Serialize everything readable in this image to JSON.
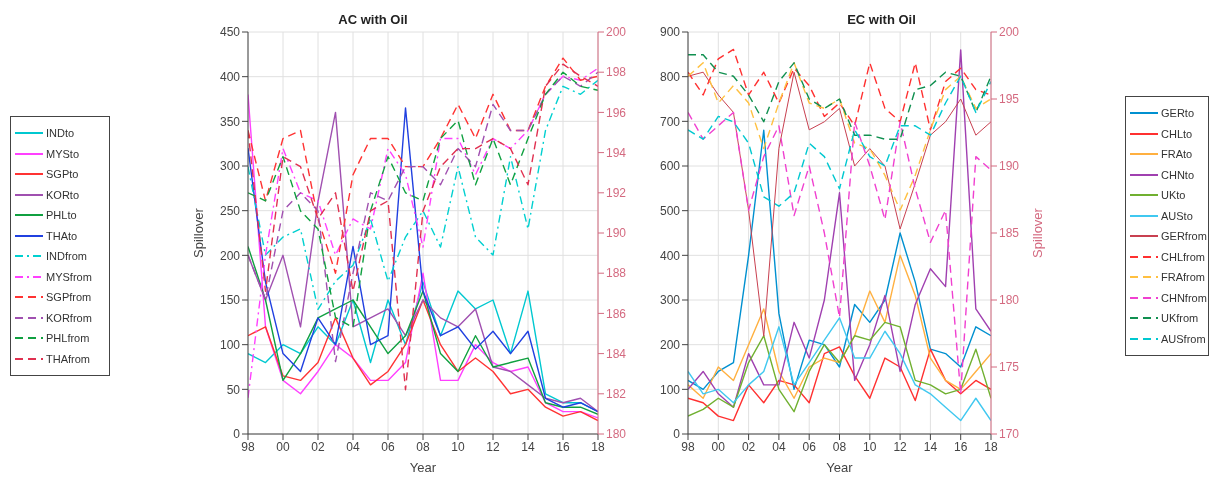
{
  "chart_data": [
    {
      "type": "line",
      "title": "AC with Oil",
      "xlabel": "Year",
      "ylabel": "Spillover",
      "legend": "left",
      "grid": true,
      "x": [
        1998,
        1999,
        2000,
        2001,
        2002,
        2003,
        2004,
        2005,
        2006,
        2007,
        2008,
        2009,
        2010,
        2011,
        2012,
        2013,
        2014,
        2015,
        2016,
        2017,
        2018
      ],
      "xlim": [
        1998,
        2018
      ],
      "xticks": [
        {
          "value": 1998,
          "label": "98"
        },
        {
          "value": 2000,
          "label": "00"
        },
        {
          "value": 2002,
          "label": "02"
        },
        {
          "value": 2004,
          "label": "04"
        },
        {
          "value": 2006,
          "label": "06"
        },
        {
          "value": 2008,
          "label": "08"
        },
        {
          "value": 2010,
          "label": "10"
        },
        {
          "value": 2012,
          "label": "12"
        },
        {
          "value": 2014,
          "label": "14"
        },
        {
          "value": 2016,
          "label": "16"
        },
        {
          "value": 2018,
          "label": "18"
        }
      ],
      "ylim": [
        0,
        450
      ],
      "yticks": [
        0,
        50,
        100,
        150,
        200,
        250,
        300,
        350,
        400,
        450
      ],
      "y2lim": [
        180,
        200
      ],
      "y2ticks": [
        180,
        182,
        184,
        186,
        188,
        190,
        192,
        194,
        196,
        198,
        200
      ],
      "series": [
        {
          "name": "INDto",
          "color": "#00c8d0",
          "line_style": "solid",
          "values": [
            90,
            80,
            100,
            90,
            120,
            100,
            150,
            80,
            150,
            100,
            170,
            110,
            160,
            140,
            150,
            90,
            160,
            45,
            35,
            35,
            25
          ]
        },
        {
          "name": "MYSto",
          "color": "#ff40ff",
          "line_style": "solid",
          "values": [
            380,
            120,
            60,
            45,
            70,
            100,
            85,
            60,
            60,
            80,
            180,
            60,
            60,
            100,
            80,
            70,
            75,
            35,
            25,
            25,
            18
          ]
        },
        {
          "name": "SGPto",
          "color": "#ff3333",
          "line_style": "solid",
          "values": [
            110,
            120,
            65,
            60,
            80,
            130,
            85,
            55,
            70,
            100,
            150,
            100,
            70,
            85,
            70,
            45,
            50,
            30,
            20,
            25,
            15
          ]
        },
        {
          "name": "KORto",
          "color": "#a050b0",
          "line_style": "solid",
          "values": [
            200,
            150,
            200,
            120,
            260,
            360,
            120,
            130,
            140,
            110,
            150,
            130,
            120,
            140,
            75,
            70,
            55,
            40,
            35,
            40,
            25
          ]
        },
        {
          "name": "PHLto",
          "color": "#10a040",
          "line_style": "solid",
          "values": [
            210,
            150,
            60,
            90,
            130,
            140,
            150,
            120,
            90,
            110,
            160,
            90,
            70,
            110,
            75,
            80,
            85,
            35,
            30,
            30,
            22
          ]
        },
        {
          "name": "THAto",
          "color": "#2040e0",
          "line_style": "solid",
          "values": [
            320,
            170,
            90,
            70,
            130,
            100,
            210,
            100,
            110,
            365,
            160,
            110,
            120,
            95,
            115,
            90,
            115,
            40,
            30,
            35,
            25
          ]
        },
        {
          "name": "INDfrom",
          "color": "#00d0d0",
          "line_style": "dashdot",
          "axis": "y2",
          "values": [
            193.3,
            188.9,
            189.8,
            190.2,
            186.2,
            187.6,
            188.4,
            190.7,
            187.6,
            189.8,
            191.1,
            189.3,
            193.3,
            189.8,
            188.9,
            193.8,
            190.2,
            195.1,
            197.3,
            196.9,
            197.6
          ]
        },
        {
          "name": "MYSfrom",
          "color": "#ff40ff",
          "line_style": "dashdot",
          "axis": "y2",
          "values": [
            181.8,
            188.9,
            194.2,
            192.0,
            191.6,
            188.9,
            190.7,
            190.2,
            194.2,
            192.9,
            189.3,
            194.7,
            194.7,
            192.9,
            194.7,
            194.2,
            195.1,
            196.9,
            197.8,
            197.6,
            198.2
          ]
        },
        {
          "name": "SGPfrom",
          "color": "#ff3333",
          "line_style": "dashed",
          "axis": "y2",
          "values": [
            195.1,
            191.6,
            194.7,
            195.1,
            190.7,
            188.0,
            192.9,
            194.7,
            194.7,
            193.3,
            193.3,
            194.7,
            196.4,
            194.7,
            196.9,
            195.1,
            195.1,
            197.3,
            198.7,
            197.6,
            197.8
          ]
        },
        {
          "name": "KORfrom",
          "color": "#a050b0",
          "line_style": "dashed",
          "axis": "y2",
          "values": [
            188.9,
            186.7,
            191.1,
            192.0,
            191.1,
            183.6,
            188.0,
            192.0,
            191.6,
            193.3,
            193.3,
            192.4,
            194.2,
            193.3,
            196.4,
            195.1,
            195.1,
            196.9,
            197.8,
            197.3,
            198.0
          ]
        },
        {
          "name": "PHLfrom",
          "color": "#10a040",
          "line_style": "dashed",
          "axis": "y2",
          "values": [
            192.0,
            191.6,
            193.8,
            191.1,
            190.2,
            185.8,
            185.3,
            191.1,
            193.8,
            192.0,
            191.6,
            194.7,
            195.6,
            192.4,
            194.7,
            192.4,
            194.7,
            196.9,
            198.0,
            197.3,
            197.1
          ]
        },
        {
          "name": "THAfrom",
          "color": "#e03050",
          "line_style": "dashed",
          "axis": "y2",
          "values": [
            195.1,
            187.1,
            193.8,
            193.3,
            190.7,
            192.0,
            187.1,
            191.1,
            191.6,
            182.2,
            191.1,
            193.3,
            194.2,
            194.2,
            194.7,
            194.2,
            192.4,
            197.3,
            198.4,
            197.8,
            197.3
          ]
        }
      ]
    },
    {
      "type": "line",
      "title": "EC with Oil",
      "xlabel": "Year",
      "y2label": "Spillover",
      "legend": "right",
      "grid": true,
      "x": [
        1998,
        1999,
        2000,
        2001,
        2002,
        2003,
        2004,
        2005,
        2006,
        2007,
        2008,
        2009,
        2010,
        2011,
        2012,
        2013,
        2014,
        2015,
        2016,
        2017,
        2018
      ],
      "xlim": [
        1998,
        2018
      ],
      "xticks": [
        {
          "value": 1998,
          "label": "98"
        },
        {
          "value": 2000,
          "label": "00"
        },
        {
          "value": 2002,
          "label": "02"
        },
        {
          "value": 2004,
          "label": "04"
        },
        {
          "value": 2006,
          "label": "06"
        },
        {
          "value": 2008,
          "label": "08"
        },
        {
          "value": 2010,
          "label": "10"
        },
        {
          "value": 2012,
          "label": "12"
        },
        {
          "value": 2014,
          "label": "14"
        },
        {
          "value": 2016,
          "label": "16"
        },
        {
          "value": 2018,
          "label": "18"
        }
      ],
      "ylim": [
        0,
        900
      ],
      "yticks": [
        0,
        100,
        200,
        300,
        400,
        500,
        600,
        700,
        800,
        900
      ],
      "y2lim": [
        170,
        200
      ],
      "y2ticks": [
        170,
        175,
        180,
        185,
        190,
        195,
        200
      ],
      "series": [
        {
          "name": "GERto",
          "color": "#0090d0",
          "line_style": "solid",
          "values": [
            120,
            100,
            140,
            160,
            400,
            680,
            270,
            100,
            210,
            200,
            150,
            290,
            250,
            300,
            450,
            340,
            190,
            180,
            150,
            240,
            220
          ]
        },
        {
          "name": "CHLto",
          "color": "#ff3030",
          "line_style": "solid",
          "values": [
            80,
            70,
            40,
            30,
            110,
            70,
            120,
            110,
            70,
            180,
            195,
            130,
            80,
            170,
            150,
            75,
            190,
            120,
            90,
            120,
            100
          ]
        },
        {
          "name": "FRAto",
          "color": "#ffb040",
          "line_style": "solid",
          "values": [
            110,
            80,
            150,
            120,
            200,
            280,
            140,
            80,
            150,
            170,
            160,
            220,
            320,
            250,
            400,
            310,
            170,
            120,
            100,
            140,
            180
          ]
        },
        {
          "name": "CHNto",
          "color": "#a040b0",
          "line_style": "solid",
          "values": [
            100,
            140,
            90,
            60,
            180,
            110,
            110,
            250,
            170,
            300,
            540,
            120,
            200,
            310,
            140,
            290,
            370,
            330,
            860,
            280,
            230
          ]
        },
        {
          "name": "UKto",
          "color": "#70b030",
          "line_style": "solid",
          "values": [
            40,
            55,
            80,
            60,
            160,
            220,
            100,
            50,
            140,
            200,
            160,
            220,
            210,
            250,
            240,
            120,
            110,
            90,
            100,
            190,
            80
          ]
        },
        {
          "name": "AUSto",
          "color": "#40c8f0",
          "line_style": "solid",
          "values": [
            140,
            90,
            100,
            70,
            110,
            140,
            240,
            110,
            160,
            210,
            260,
            170,
            170,
            230,
            180,
            110,
            90,
            60,
            30,
            80,
            30
          ]
        },
        {
          "name": "GERfrom",
          "color": "#c84050",
          "line_style": "solid",
          "axis": "y2",
          "values": [
            196.7,
            197.0,
            195.3,
            194.0,
            186.7,
            177.3,
            191.3,
            197.0,
            192.7,
            193.3,
            194.3,
            190.0,
            191.3,
            190.0,
            185.3,
            188.7,
            192.3,
            193.3,
            195.0,
            192.3,
            193.3
          ]
        },
        {
          "name": "CHLfrom",
          "color": "#ff3030",
          "line_style": "dashed",
          "axis": "y2",
          "values": [
            197.0,
            195.3,
            198.0,
            198.7,
            195.3,
            197.0,
            194.7,
            197.3,
            196.0,
            193.7,
            194.7,
            193.0,
            197.7,
            194.3,
            193.3,
            197.7,
            192.7,
            196.3,
            197.3,
            195.7,
            195.3
          ]
        },
        {
          "name": "FRAfrom",
          "color": "#ffc040",
          "line_style": "dashed",
          "axis": "y2",
          "values": [
            196.7,
            197.7,
            194.7,
            196.0,
            194.7,
            191.3,
            194.7,
            197.7,
            194.7,
            194.3,
            195.0,
            191.7,
            191.3,
            189.3,
            186.7,
            189.3,
            192.7,
            195.7,
            196.7,
            194.3,
            195.0
          ]
        },
        {
          "name": "CHNfrom",
          "color": "#f040d0",
          "line_style": "dashed",
          "axis": "y2",
          "values": [
            194.0,
            192.0,
            193.0,
            194.0,
            186.7,
            190.7,
            193.0,
            186.3,
            190.0,
            185.0,
            178.7,
            193.3,
            190.0,
            186.0,
            193.3,
            188.3,
            184.3,
            186.7,
            173.0,
            190.7,
            189.7
          ]
        },
        {
          "name": "UKfrom",
          "color": "#109050",
          "line_style": "dashed",
          "axis": "y2",
          "values": [
            198.3,
            198.3,
            197.0,
            196.7,
            195.3,
            193.3,
            196.3,
            197.7,
            195.0,
            194.3,
            195.0,
            192.3,
            192.3,
            192.0,
            192.0,
            195.7,
            196.0,
            197.0,
            196.7,
            194.0,
            196.7
          ]
        },
        {
          "name": "AUSfrom",
          "color": "#00c8d0",
          "line_style": "dashed",
          "axis": "y2",
          "values": [
            192.7,
            192.0,
            193.7,
            193.3,
            191.7,
            187.7,
            187.0,
            188.0,
            191.7,
            190.7,
            188.3,
            192.7,
            190.7,
            190.0,
            193.0,
            193.0,
            192.3,
            194.7,
            196.7,
            194.0,
            196.3
          ]
        }
      ]
    }
  ]
}
